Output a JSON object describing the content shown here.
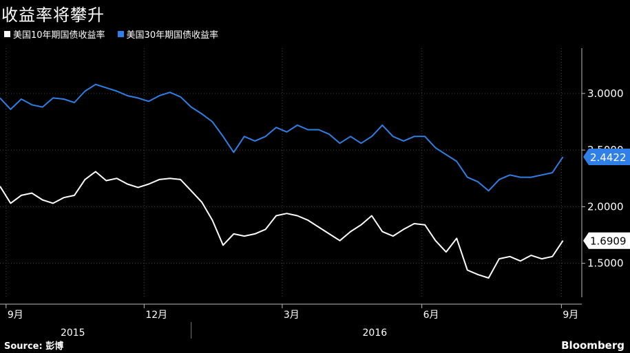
{
  "title": "收益率将攀升",
  "legend": [
    {
      "label": "美国10年期国债收益率",
      "color": "#ffffff"
    },
    {
      "label": "美国30年期国债收益率",
      "color": "#2f7fe6"
    }
  ],
  "source": "Source: 彭博",
  "brand": "Bloomberg",
  "chart_data": {
    "type": "line",
    "ylim": [
      1.2,
      3.4
    ],
    "yticks": [
      "3.0000",
      "2.5000",
      "2.0000",
      "1.5000"
    ],
    "ytick_values": [
      3.0,
      2.5,
      2.0,
      1.5
    ],
    "xticks": [
      "9月",
      "12月",
      "3月",
      "6月",
      "9月"
    ],
    "xtick_dates": [
      "2015-09-01",
      "2015-12-01",
      "2016-03-01",
      "2016-06-01",
      "2016-09-01"
    ],
    "years": [
      {
        "label": "2015",
        "mid": "2015-10-15"
      },
      {
        "label": "2016",
        "mid": "2016-05-01"
      }
    ],
    "xrange": [
      "2015-08-28",
      "2016-09-04"
    ],
    "grid": true,
    "series": [
      {
        "name": "美国30年期国债收益率",
        "color": "#2f7fe6",
        "end_label": "2.4422",
        "x": [
          "2015-08-28",
          "2015-09-04",
          "2015-09-11",
          "2015-09-18",
          "2015-09-25",
          "2015-10-02",
          "2015-10-09",
          "2015-10-16",
          "2015-10-23",
          "2015-10-30",
          "2015-11-06",
          "2015-11-13",
          "2015-11-20",
          "2015-11-27",
          "2015-12-04",
          "2015-12-11",
          "2015-12-18",
          "2015-12-25",
          "2016-01-01",
          "2016-01-08",
          "2016-01-15",
          "2016-01-22",
          "2016-01-29",
          "2016-02-05",
          "2016-02-12",
          "2016-02-19",
          "2016-02-26",
          "2016-03-04",
          "2016-03-11",
          "2016-03-18",
          "2016-03-25",
          "2016-04-01",
          "2016-04-08",
          "2016-04-15",
          "2016-04-22",
          "2016-04-29",
          "2016-05-06",
          "2016-05-13",
          "2016-05-20",
          "2016-05-27",
          "2016-06-03",
          "2016-06-10",
          "2016-06-17",
          "2016-06-24",
          "2016-07-01",
          "2016-07-08",
          "2016-07-15",
          "2016-07-22",
          "2016-07-29",
          "2016-08-05",
          "2016-08-12",
          "2016-08-19",
          "2016-08-26",
          "2016-09-02"
        ],
        "y": [
          2.96,
          2.86,
          2.95,
          2.9,
          2.88,
          2.96,
          2.95,
          2.92,
          3.02,
          3.08,
          3.05,
          3.02,
          2.98,
          2.96,
          2.93,
          2.98,
          3.01,
          2.97,
          2.88,
          2.82,
          2.75,
          2.62,
          2.48,
          2.62,
          2.58,
          2.62,
          2.7,
          2.66,
          2.72,
          2.68,
          2.68,
          2.64,
          2.56,
          2.62,
          2.56,
          2.62,
          2.72,
          2.62,
          2.58,
          2.62,
          2.62,
          2.52,
          2.46,
          2.4,
          2.26,
          2.22,
          2.14,
          2.24,
          2.28,
          2.26,
          2.26,
          2.28,
          2.3,
          2.44
        ]
      },
      {
        "name": "美国10年期国债收益率",
        "color": "#ffffff",
        "end_label": "1.6909",
        "x": [
          "2015-08-28",
          "2015-09-04",
          "2015-09-11",
          "2015-09-18",
          "2015-09-25",
          "2015-10-02",
          "2015-10-09",
          "2015-10-16",
          "2015-10-23",
          "2015-10-30",
          "2015-11-06",
          "2015-11-13",
          "2015-11-20",
          "2015-11-27",
          "2015-12-04",
          "2015-12-11",
          "2015-12-18",
          "2015-12-25",
          "2016-01-01",
          "2016-01-08",
          "2016-01-15",
          "2016-01-22",
          "2016-01-29",
          "2016-02-05",
          "2016-02-12",
          "2016-02-19",
          "2016-02-26",
          "2016-03-04",
          "2016-03-11",
          "2016-03-18",
          "2016-03-25",
          "2016-04-01",
          "2016-04-08",
          "2016-04-15",
          "2016-04-22",
          "2016-04-29",
          "2016-05-06",
          "2016-05-13",
          "2016-05-20",
          "2016-05-27",
          "2016-06-03",
          "2016-06-10",
          "2016-06-17",
          "2016-06-24",
          "2016-07-01",
          "2016-07-08",
          "2016-07-15",
          "2016-07-22",
          "2016-07-29",
          "2016-08-05",
          "2016-08-12",
          "2016-08-19",
          "2016-08-26",
          "2016-09-02"
        ],
        "y": [
          2.18,
          2.03,
          2.1,
          2.12,
          2.06,
          2.03,
          2.08,
          2.1,
          2.24,
          2.31,
          2.23,
          2.25,
          2.2,
          2.17,
          2.2,
          2.24,
          2.25,
          2.24,
          2.14,
          2.04,
          1.88,
          1.66,
          1.76,
          1.74,
          1.76,
          1.8,
          1.92,
          1.94,
          1.92,
          1.88,
          1.82,
          1.76,
          1.7,
          1.78,
          1.84,
          1.92,
          1.78,
          1.74,
          1.8,
          1.85,
          1.84,
          1.7,
          1.6,
          1.72,
          1.44,
          1.4,
          1.37,
          1.54,
          1.56,
          1.52,
          1.57,
          1.54,
          1.56,
          1.7
        ]
      }
    ]
  }
}
